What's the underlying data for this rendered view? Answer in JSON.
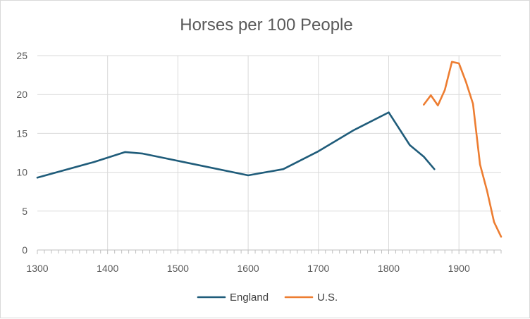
{
  "chart_data": {
    "type": "line",
    "title": "Horses per 100 People",
    "xlabel": "",
    "ylabel": "",
    "xlim": [
      1300,
      1960
    ],
    "ylim": [
      0,
      25
    ],
    "x_ticks": [
      1300,
      1400,
      1500,
      1600,
      1700,
      1800,
      1900
    ],
    "y_ticks": [
      0,
      5,
      10,
      15,
      20,
      25
    ],
    "grid": true,
    "legend_position": "bottom",
    "series": [
      {
        "name": "England",
        "color": "#1f5c7a",
        "points": [
          {
            "x": 1300,
            "y": 9.3
          },
          {
            "x": 1380,
            "y": 11.3
          },
          {
            "x": 1425,
            "y": 12.6
          },
          {
            "x": 1450,
            "y": 12.4
          },
          {
            "x": 1600,
            "y": 9.6
          },
          {
            "x": 1650,
            "y": 10.4
          },
          {
            "x": 1700,
            "y": 12.7
          },
          {
            "x": 1750,
            "y": 15.4
          },
          {
            "x": 1800,
            "y": 17.7
          },
          {
            "x": 1830,
            "y": 13.5
          },
          {
            "x": 1850,
            "y": 12.0
          },
          {
            "x": 1865,
            "y": 10.4
          }
        ]
      },
      {
        "name": "U.S.",
        "color": "#ed7d31",
        "points": [
          {
            "x": 1850,
            "y": 18.7
          },
          {
            "x": 1860,
            "y": 19.9
          },
          {
            "x": 1870,
            "y": 18.6
          },
          {
            "x": 1880,
            "y": 20.6
          },
          {
            "x": 1890,
            "y": 24.2
          },
          {
            "x": 1900,
            "y": 24.0
          },
          {
            "x": 1910,
            "y": 21.6
          },
          {
            "x": 1920,
            "y": 18.8
          },
          {
            "x": 1930,
            "y": 11.0
          },
          {
            "x": 1940,
            "y": 7.6
          },
          {
            "x": 1950,
            "y": 3.6
          },
          {
            "x": 1960,
            "y": 1.7
          }
        ]
      }
    ]
  }
}
